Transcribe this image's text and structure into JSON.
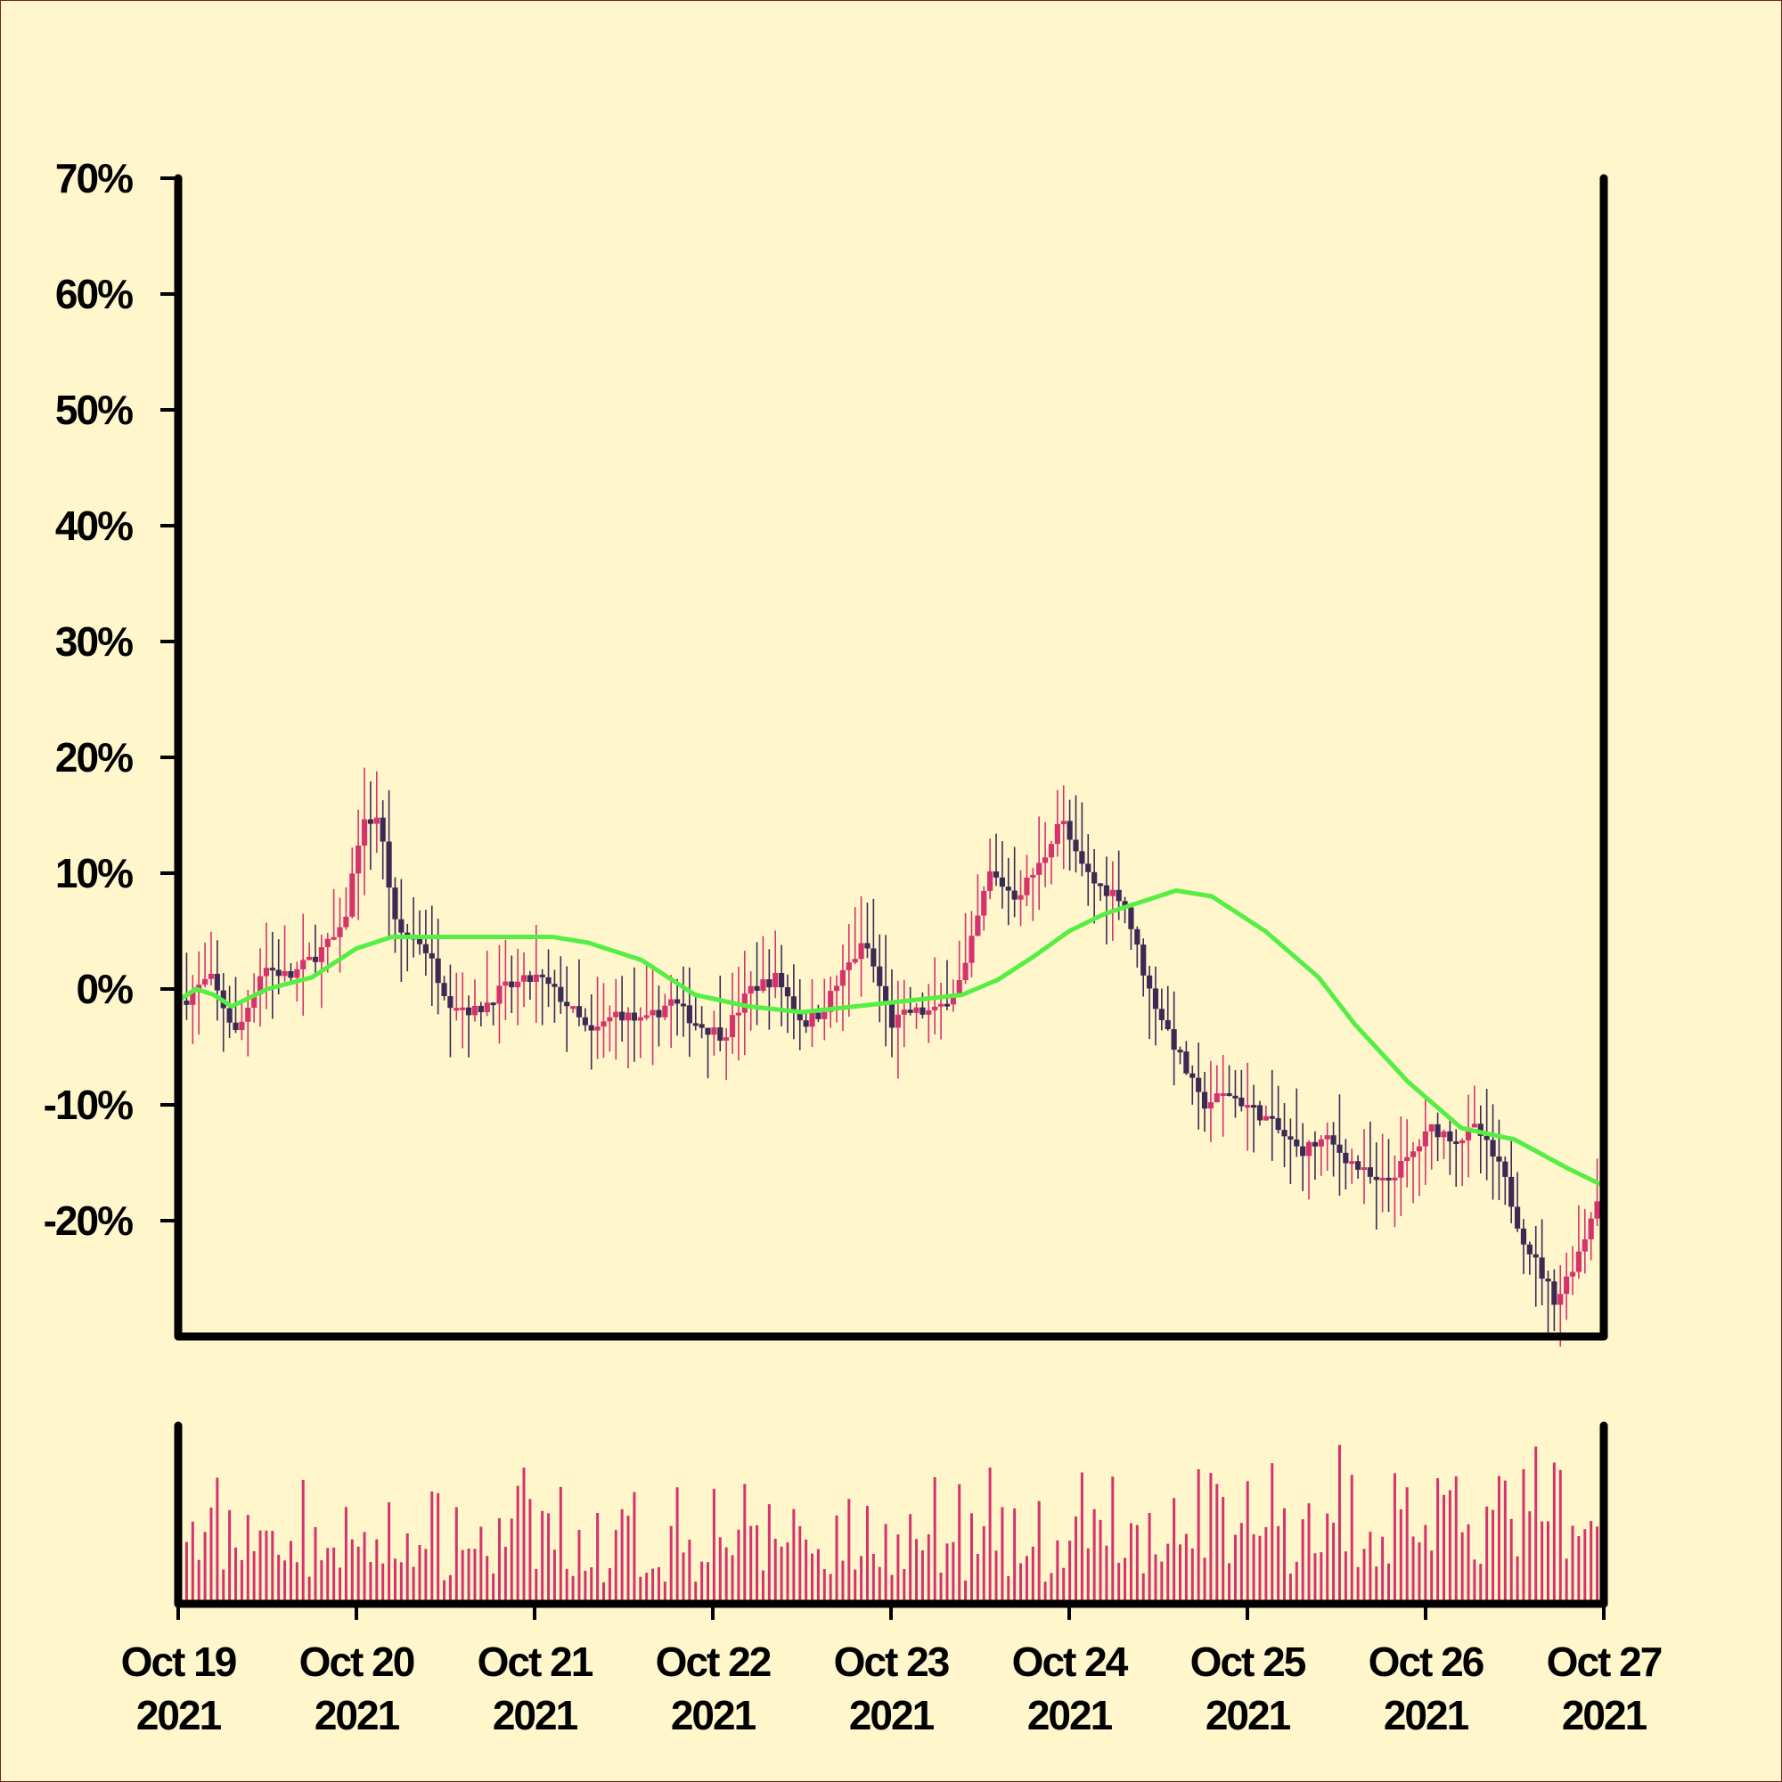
{
  "colors": {
    "background": "#fff6cc",
    "up_candle": "#d6336c",
    "down_candle": "#3c2a55",
    "moving_average": "#55ee44",
    "volume_bar": "#d6336c",
    "axis": "#000000"
  },
  "chart_data": {
    "type": "candlestick",
    "title": "",
    "xlabel": "",
    "ylabel": "",
    "ylim": [
      -30,
      70
    ],
    "yticks": [
      -20,
      -10,
      0,
      10,
      20,
      30,
      40,
      50,
      60,
      70
    ],
    "ytick_labels": [
      "-20%",
      "-10%",
      "0%",
      "10%",
      "20%",
      "30%",
      "40%",
      "50%",
      "60%",
      "70%"
    ],
    "xlim": [
      "2021-10-19",
      "2021-10-27"
    ],
    "xtick_labels": [
      [
        "Oct 19",
        "2021"
      ],
      [
        "Oct 20",
        "2021"
      ],
      [
        "Oct 21",
        "2021"
      ],
      [
        "Oct 22",
        "2021"
      ],
      [
        "Oct 23",
        "2021"
      ],
      [
        "Oct 24",
        "2021"
      ],
      [
        "Oct 25",
        "2021"
      ],
      [
        "Oct 26",
        "2021"
      ],
      [
        "Oct 27",
        "2021"
      ]
    ],
    "close_path": {
      "note_units": "cumulative percent change",
      "x_days_since_oct19": [
        0,
        0.15,
        0.3,
        0.45,
        0.6,
        0.75,
        0.9,
        1.0,
        1.1,
        1.2,
        1.35,
        1.5,
        1.65,
        1.8,
        2.0,
        2.15,
        2.3,
        2.45,
        2.6,
        2.75,
        2.9,
        3.05,
        3.2,
        3.35,
        3.5,
        3.6,
        3.75,
        3.85,
        4.0,
        4.1,
        4.25,
        4.4,
        4.55,
        4.7,
        4.85,
        4.95,
        5.05,
        5.15,
        5.3,
        5.45,
        5.6,
        5.75,
        5.9,
        6.1,
        6.3,
        6.45,
        6.6,
        6.75,
        6.9,
        7.05,
        7.2,
        7.3,
        7.45,
        7.55,
        7.65,
        7.75,
        7.9,
        8.0
      ],
      "close": [
        -1,
        1,
        -4,
        2,
        1,
        3,
        5,
        14,
        15,
        5,
        4,
        -1,
        -2,
        0,
        1,
        -1,
        -4,
        -2,
        -3,
        -1,
        -3,
        -4,
        0,
        1,
        -3,
        -2,
        2,
        4,
        -3,
        -2,
        -2,
        1,
        10,
        8,
        11,
        15,
        11,
        9,
        8,
        0,
        -5,
        -10,
        -9,
        -11,
        -14,
        -13,
        -15,
        -17,
        -15,
        -12,
        -13,
        -12,
        -16,
        -21,
        -24,
        -27,
        -22,
        -17
      ]
    },
    "moving_average": {
      "x_days_since_oct19": [
        0,
        0.1,
        0.2,
        0.3,
        0.5,
        0.75,
        1.0,
        1.2,
        1.5,
        1.75,
        1.9,
        2.1,
        2.3,
        2.6,
        2.9,
        3.2,
        3.5,
        3.8,
        4.1,
        4.4,
        4.6,
        4.8,
        5.0,
        5.2,
        5.4,
        5.6,
        5.8,
        6.1,
        6.4,
        6.6,
        6.9,
        7.2,
        7.5,
        7.8,
        8.0
      ],
      "values": [
        -1,
        0,
        -0.5,
        -1.5,
        0,
        1,
        3.5,
        4.5,
        4.5,
        4.5,
        4.5,
        4.5,
        4,
        2.5,
        -0.5,
        -1.5,
        -2,
        -1.5,
        -1,
        -0.5,
        0.8,
        2.8,
        5,
        6.5,
        7.5,
        8.5,
        8,
        5,
        1,
        -3,
        -8,
        -12,
        -13,
        -15.5,
        -17
      ]
    },
    "volume": {
      "bar_count": 231,
      "relative_levels": "varied, peaks near Oct 24-26"
    }
  }
}
